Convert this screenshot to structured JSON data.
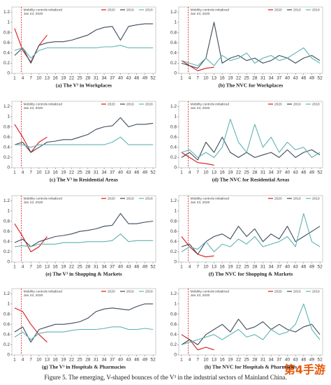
{
  "caption": "Figure 5. The emerging, V-shaped bounces of the V³ in the industrial sectors of Mainland China.",
  "watermark": "第4手游",
  "chart_data": [
    {
      "type": "line",
      "title": "(a) The V³ in Workplaces",
      "annotation": [
        "Mobility controls initialized",
        "Jan 23, 2020"
      ],
      "annotation_x": 3.5,
      "x": [
        1,
        4,
        7,
        10,
        13,
        16,
        19,
        22,
        25,
        28,
        31,
        34,
        37,
        40,
        43,
        46,
        49,
        52
      ],
      "xlim": [
        0,
        53
      ],
      "ylim": [
        0,
        1.3
      ],
      "xticks": [
        1,
        4,
        7,
        10,
        13,
        16,
        19,
        22,
        25,
        28,
        31,
        34,
        37,
        40,
        43,
        46,
        49,
        52
      ],
      "yticks": [
        0,
        0.2,
        0.4,
        0.6,
        0.8,
        1,
        1.2
      ],
      "series": [
        {
          "name": "2020",
          "color": "#d7191c",
          "values": [
            0.88,
            0.45,
            0.22,
            0.55,
            0.75,
            null,
            null,
            null,
            null,
            null,
            null,
            null,
            null,
            null,
            null,
            null,
            null,
            null
          ]
        },
        {
          "name": "2019",
          "color": "#3e4a5a",
          "values": [
            0.35,
            0.5,
            0.2,
            0.55,
            0.6,
            0.62,
            0.62,
            0.65,
            0.7,
            0.75,
            0.85,
            0.9,
            0.92,
            0.65,
            0.92,
            0.95,
            0.97,
            0.97
          ]
        },
        {
          "name": "2018",
          "color": "#5fb3b3",
          "values": [
            0.45,
            0.5,
            0.3,
            0.45,
            0.5,
            0.5,
            0.5,
            0.5,
            0.5,
            0.5,
            0.5,
            0.52,
            0.52,
            0.55,
            0.5,
            0.5,
            0.5,
            0.5
          ]
        }
      ]
    },
    {
      "type": "line",
      "title": "(b) The NVC for Workplaces",
      "annotation": [
        "Mobility controls initialized",
        "Jan 23, 2020"
      ],
      "annotation_x": 3.5,
      "x": [
        1,
        4,
        7,
        10,
        13,
        16,
        19,
        22,
        25,
        28,
        31,
        34,
        37,
        40,
        43,
        46,
        49,
        52
      ],
      "xlim": [
        0,
        53
      ],
      "ylim": [
        0,
        1.3
      ],
      "xticks": [
        1,
        4,
        7,
        10,
        13,
        16,
        19,
        22,
        25,
        28,
        31,
        34,
        37,
        40,
        43,
        46,
        49,
        52
      ],
      "yticks": [
        0,
        0.2,
        0.4,
        0.6,
        0.8,
        1,
        1.2
      ],
      "series": [
        {
          "name": "2020",
          "color": "#d7191c",
          "values": [
            0.25,
            0.15,
            0.05,
            0.1,
            0.12,
            null,
            null,
            null,
            null,
            null,
            null,
            null,
            null,
            null,
            null,
            null,
            null,
            null
          ]
        },
        {
          "name": "2019",
          "color": "#3e4a5a",
          "values": [
            0.2,
            0.15,
            0.1,
            0.3,
            1.0,
            0.2,
            0.3,
            0.35,
            0.25,
            0.3,
            0.2,
            0.25,
            0.35,
            0.3,
            0.2,
            0.3,
            0.35,
            0.25
          ]
        },
        {
          "name": "2018",
          "color": "#5fb3b3",
          "values": [
            0.25,
            0.2,
            0.15,
            0.3,
            0.15,
            0.35,
            0.25,
            0.3,
            0.4,
            0.2,
            0.3,
            0.35,
            0.25,
            0.3,
            0.4,
            0.5,
            0.3,
            0.2
          ]
        }
      ]
    },
    {
      "type": "line",
      "title": "(c) The V³ in Residential Areas",
      "annotation": [
        "Mobility controls initialized",
        "Jan 23, 2020"
      ],
      "annotation_x": 3.5,
      "x": [
        1,
        4,
        7,
        10,
        13,
        16,
        19,
        22,
        25,
        28,
        31,
        34,
        37,
        40,
        43,
        46,
        49,
        52
      ],
      "xlim": [
        0,
        53
      ],
      "ylim": [
        0,
        1.3
      ],
      "xticks": [
        1,
        4,
        7,
        10,
        13,
        16,
        19,
        22,
        25,
        28,
        31,
        34,
        37,
        40,
        43,
        46,
        49,
        52
      ],
      "yticks": [
        0,
        0.2,
        0.4,
        0.6,
        0.8,
        1,
        1.2
      ],
      "series": [
        {
          "name": "2020",
          "color": "#d7191c",
          "values": [
            0.85,
            0.6,
            0.3,
            0.5,
            0.6,
            null,
            null,
            null,
            null,
            null,
            null,
            null,
            null,
            null,
            null,
            null,
            null,
            null
          ]
        },
        {
          "name": "2019",
          "color": "#3e4a5a",
          "values": [
            0.45,
            0.5,
            0.3,
            0.4,
            0.5,
            0.52,
            0.55,
            0.55,
            0.6,
            0.65,
            0.75,
            0.8,
            0.82,
            0.98,
            0.8,
            0.85,
            0.85,
            0.87
          ]
        },
        {
          "name": "2018",
          "color": "#5fb3b3",
          "values": [
            0.45,
            0.45,
            0.4,
            0.45,
            0.45,
            0.45,
            0.45,
            0.45,
            0.45,
            0.45,
            0.45,
            0.45,
            0.5,
            0.6,
            0.45,
            0.45,
            0.45,
            0.45
          ]
        }
      ]
    },
    {
      "type": "line",
      "title": "(d) The NVC for Residential Areas",
      "annotation": [
        "Mobility controls initialized",
        "Jan 23, 2020"
      ],
      "annotation_x": 3.5,
      "x": [
        1,
        4,
        7,
        10,
        13,
        16,
        19,
        22,
        25,
        28,
        31,
        34,
        37,
        40,
        43,
        46,
        49,
        52
      ],
      "xlim": [
        0,
        53
      ],
      "ylim": [
        0,
        1.3
      ],
      "xticks": [
        1,
        4,
        7,
        10,
        13,
        16,
        19,
        22,
        25,
        28,
        31,
        34,
        37,
        40,
        43,
        46,
        49,
        52
      ],
      "yticks": [
        0,
        0.2,
        0.4,
        0.6,
        0.8,
        1,
        1.2
      ],
      "series": [
        {
          "name": "2020",
          "color": "#d7191c",
          "values": [
            0.3,
            0.2,
            0.1,
            0.08,
            0.05,
            null,
            null,
            null,
            null,
            null,
            null,
            null,
            null,
            null,
            null,
            null,
            null,
            null
          ]
        },
        {
          "name": "2019",
          "color": "#3e4a5a",
          "values": [
            0.2,
            0.3,
            0.15,
            0.5,
            0.3,
            0.6,
            0.3,
            0.2,
            0.3,
            0.2,
            0.25,
            0.3,
            0.2,
            0.35,
            0.2,
            0.3,
            0.35,
            0.25
          ]
        },
        {
          "name": "2018",
          "color": "#5fb3b3",
          "values": [
            0.3,
            0.35,
            0.2,
            0.3,
            0.2,
            0.4,
            0.95,
            0.5,
            0.3,
            0.85,
            0.4,
            0.6,
            0.3,
            0.5,
            0.35,
            0.4,
            0.2,
            0.3
          ]
        }
      ]
    },
    {
      "type": "line",
      "title": "(e) The V³ in Shopping & Markets",
      "annotation": [
        "Mobility controls initialized",
        "Jan 23, 2020"
      ],
      "annotation_x": 3.5,
      "x": [
        1,
        4,
        7,
        10,
        13,
        16,
        19,
        22,
        25,
        28,
        31,
        34,
        37,
        40,
        43,
        46,
        49,
        52
      ],
      "xlim": [
        0,
        53
      ],
      "ylim": [
        0,
        1.3
      ],
      "xticks": [
        1,
        4,
        7,
        10,
        13,
        16,
        19,
        22,
        25,
        28,
        31,
        34,
        37,
        40,
        43,
        46,
        49,
        52
      ],
      "yticks": [
        0,
        0.2,
        0.4,
        0.6,
        0.8,
        1,
        1.2
      ],
      "series": [
        {
          "name": "2020",
          "color": "#d7191c",
          "values": [
            0.75,
            0.5,
            0.2,
            0.3,
            0.5,
            null,
            null,
            null,
            null,
            null,
            null,
            null,
            null,
            null,
            null,
            null,
            null,
            null
          ]
        },
        {
          "name": "2019",
          "color": "#3e4a5a",
          "values": [
            0.38,
            0.45,
            0.3,
            0.4,
            0.45,
            0.5,
            0.52,
            0.55,
            0.6,
            0.62,
            0.65,
            0.7,
            0.72,
            0.95,
            0.75,
            0.75,
            0.78,
            0.8
          ]
        },
        {
          "name": "2018",
          "color": "#5fb3b3",
          "values": [
            0.3,
            0.32,
            0.3,
            0.35,
            0.35,
            0.35,
            0.38,
            0.38,
            0.38,
            0.4,
            0.4,
            0.4,
            0.42,
            0.55,
            0.4,
            0.42,
            0.42,
            0.42
          ]
        }
      ]
    },
    {
      "type": "line",
      "title": "(f) The NVC for Shopping & Markets",
      "annotation": [
        "Mobility controls initialized",
        "Jan 23, 2020"
      ],
      "annotation_x": 3.5,
      "x": [
        1,
        4,
        7,
        10,
        13,
        16,
        19,
        22,
        25,
        28,
        31,
        34,
        37,
        40,
        43,
        46,
        49,
        52
      ],
      "xlim": [
        0,
        53
      ],
      "ylim": [
        0,
        1.3
      ],
      "xticks": [
        1,
        4,
        7,
        10,
        13,
        16,
        19,
        22,
        25,
        28,
        31,
        34,
        37,
        40,
        43,
        46,
        49,
        52
      ],
      "yticks": [
        0,
        0.2,
        0.4,
        0.6,
        0.8,
        1,
        1.2
      ],
      "series": [
        {
          "name": "2020",
          "color": "#d7191c",
          "values": [
            0.5,
            0.3,
            0.15,
            0.1,
            0.12,
            null,
            null,
            null,
            null,
            null,
            null,
            null,
            null,
            null,
            null,
            null,
            null,
            null
          ]
        },
        {
          "name": "2019",
          "color": "#3e4a5a",
          "values": [
            0.3,
            0.35,
            0.15,
            0.4,
            0.5,
            0.55,
            0.45,
            0.7,
            0.5,
            0.65,
            0.4,
            0.55,
            0.45,
            0.7,
            0.4,
            0.5,
            0.6,
            0.7
          ]
        },
        {
          "name": "2018",
          "color": "#5fb3b3",
          "values": [
            0.2,
            0.3,
            0.25,
            0.4,
            0.2,
            0.35,
            0.3,
            0.45,
            0.35,
            0.5,
            0.3,
            0.35,
            0.4,
            0.5,
            0.3,
            0.95,
            0.4,
            0.3
          ]
        }
      ]
    },
    {
      "type": "line",
      "title": "(g) The V³ in Hospitals & Pharmacies",
      "annotation": [
        "Mobility controls initialized",
        "Jan 23, 2020"
      ],
      "annotation_x": 3.5,
      "x": [
        1,
        4,
        7,
        10,
        13,
        16,
        19,
        22,
        25,
        28,
        31,
        34,
        37,
        40,
        43,
        46,
        49,
        52
      ],
      "xlim": [
        0,
        53
      ],
      "ylim": [
        0,
        1.3
      ],
      "xticks": [
        1,
        4,
        7,
        10,
        13,
        16,
        19,
        22,
        25,
        28,
        31,
        34,
        37,
        40,
        43,
        46,
        49,
        52
      ],
      "yticks": [
        0,
        0.2,
        0.4,
        0.6,
        0.8,
        1,
        1.2
      ],
      "series": [
        {
          "name": "2020",
          "color": "#d7191c",
          "values": [
            0.92,
            0.85,
            0.6,
            0.4,
            0.25,
            null,
            null,
            null,
            null,
            null,
            null,
            null,
            null,
            null,
            null,
            null,
            null,
            null
          ]
        },
        {
          "name": "2019",
          "color": "#3e4a5a",
          "values": [
            0.45,
            0.55,
            0.25,
            0.5,
            0.55,
            0.6,
            0.6,
            0.62,
            0.65,
            0.72,
            0.85,
            0.9,
            0.92,
            0.9,
            0.88,
            0.95,
            1.0,
            1.0
          ]
        },
        {
          "name": "2018",
          "color": "#5fb3b3",
          "values": [
            0.35,
            0.45,
            0.3,
            0.42,
            0.45,
            0.45,
            0.45,
            0.48,
            0.5,
            0.5,
            0.5,
            0.52,
            0.55,
            0.55,
            0.5,
            0.5,
            0.52,
            0.5
          ]
        }
      ]
    },
    {
      "type": "line",
      "title": "(h) The NVC for Hospitals & Pharmacies",
      "annotation": [
        "Mobility controls initialized",
        "Jan 23, 2020"
      ],
      "annotation_x": 3.5,
      "x": [
        1,
        4,
        7,
        10,
        13,
        16,
        19,
        22,
        25,
        28,
        31,
        34,
        37,
        40,
        43,
        46,
        49,
        52
      ],
      "xlim": [
        0,
        53
      ],
      "ylim": [
        0,
        1.3
      ],
      "xticks": [
        1,
        4,
        7,
        10,
        13,
        16,
        19,
        22,
        25,
        28,
        31,
        34,
        37,
        40,
        43,
        46,
        49,
        52
      ],
      "yticks": [
        0,
        0.2,
        0.4,
        0.6,
        0.8,
        1,
        1.2
      ],
      "series": [
        {
          "name": "2020",
          "color": "#d7191c",
          "values": [
            0.4,
            0.3,
            0.1,
            0.15,
            0.1,
            null,
            null,
            null,
            null,
            null,
            null,
            null,
            null,
            null,
            null,
            null,
            null,
            null
          ]
        },
        {
          "name": "2019",
          "color": "#3e4a5a",
          "values": [
            0.2,
            0.3,
            0.2,
            0.4,
            0.5,
            0.6,
            0.45,
            0.7,
            0.5,
            0.55,
            0.65,
            0.5,
            0.6,
            0.5,
            0.45,
            0.55,
            0.6,
            0.4
          ]
        },
        {
          "name": "2018",
          "color": "#5fb3b3",
          "values": [
            0.2,
            0.25,
            0.3,
            0.35,
            0.4,
            0.3,
            0.4,
            0.5,
            0.35,
            0.4,
            0.3,
            0.5,
            0.4,
            0.45,
            0.6,
            1.0,
            0.5,
            0.3
          ]
        }
      ]
    }
  ]
}
